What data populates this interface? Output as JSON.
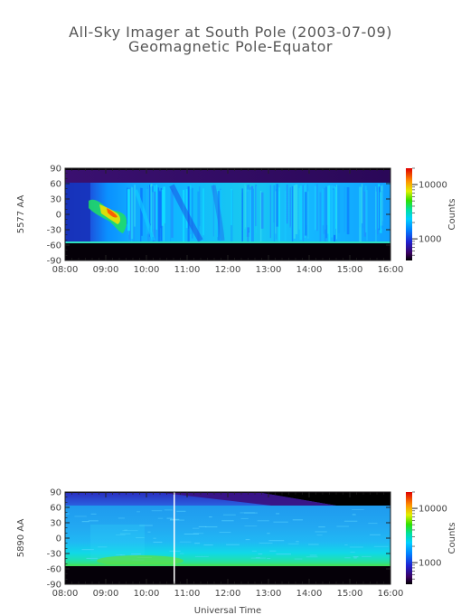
{
  "title": "All-Sky Imager at South Pole (2003-07-09)",
  "subtitle": "Geomagnetic Pole-Equator",
  "xlabel": "Universal Time",
  "chart_data": [
    {
      "type": "heatmap",
      "ylabel": "5577 AA",
      "x_ticks": [
        "08:00",
        "09:00",
        "10:00",
        "11:00",
        "12:00",
        "13:00",
        "14:00",
        "15:00",
        "16:00"
      ],
      "y_ticks": [
        "90",
        "60",
        "30",
        "0",
        "-30",
        "-60",
        "-90"
      ],
      "y_tick_values": [
        90,
        60,
        30,
        0,
        -30,
        -60,
        -90
      ],
      "ylim": [
        -90,
        90
      ],
      "xlim": [
        "08:00",
        "16:00"
      ],
      "colorbar": {
        "label": "Counts",
        "ticks": [
          "10000",
          "1000"
        ],
        "tick_values": [
          10000,
          1000
        ],
        "scale": "log"
      }
    },
    {
      "type": "heatmap",
      "ylabel": "5890 AA",
      "x_ticks": [
        "08:00",
        "09:00",
        "10:00",
        "11:00",
        "12:00",
        "13:00",
        "14:00",
        "15:00",
        "16:00"
      ],
      "y_ticks": [
        "90",
        "60",
        "30",
        "0",
        "-30",
        "-60",
        "-90"
      ],
      "y_tick_values": [
        90,
        60,
        30,
        0,
        -30,
        -60,
        -90
      ],
      "ylim": [
        -90,
        90
      ],
      "xlim": [
        "08:00",
        "16:00"
      ],
      "colorbar": {
        "label": "Counts",
        "ticks": [
          "10000",
          "1000"
        ],
        "tick_values": [
          10000,
          1000
        ],
        "scale": "log"
      }
    }
  ]
}
